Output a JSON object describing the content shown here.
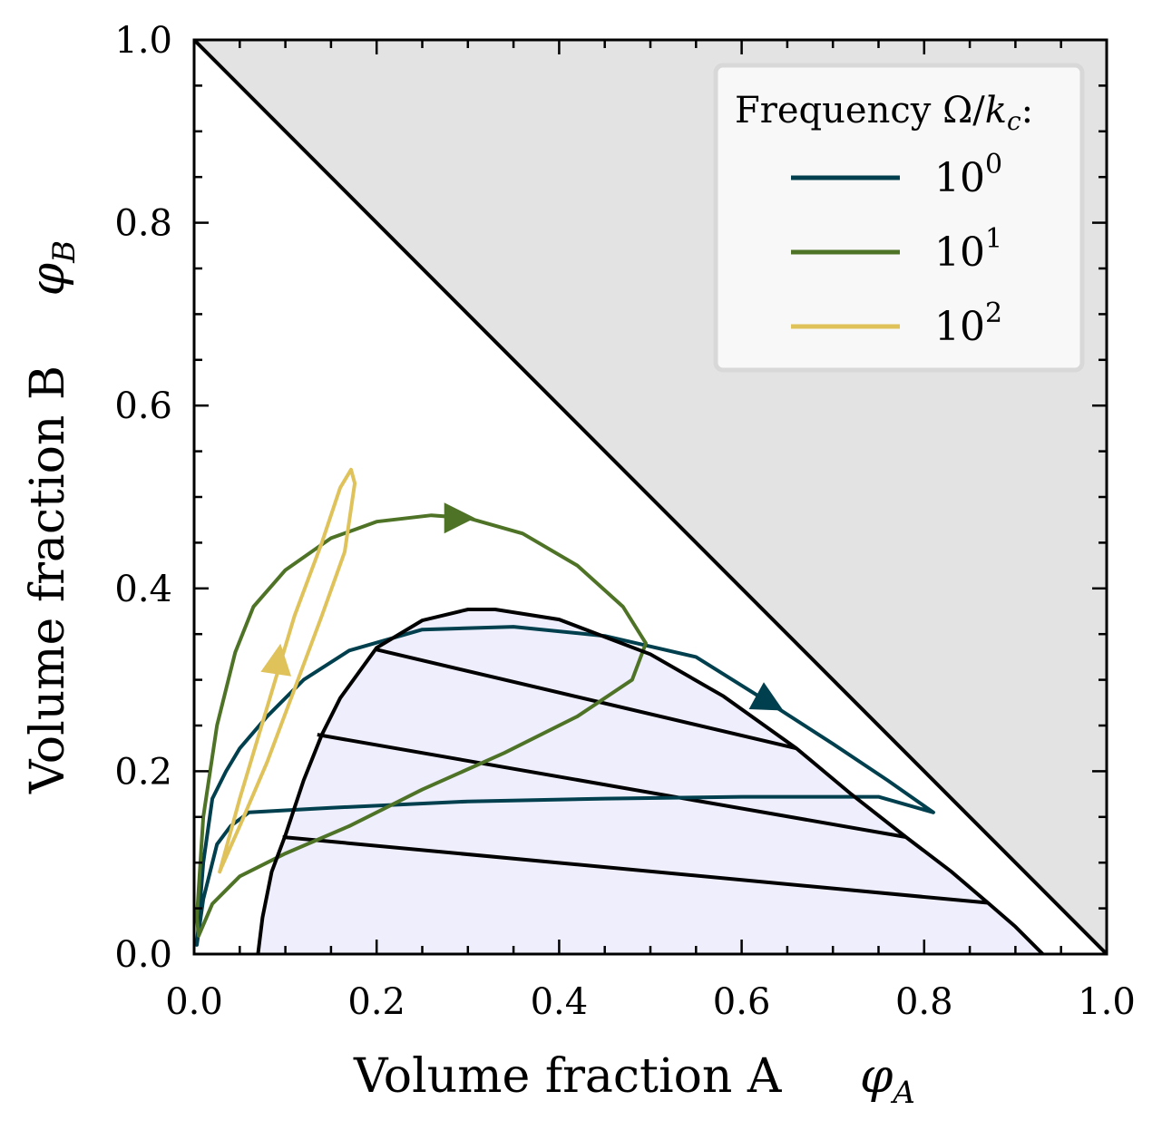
{
  "chart_data": {
    "type": "line",
    "title": "",
    "xlabel": "Volume fraction A",
    "xlabel_symbol": "φ",
    "xlabel_subscript": "A",
    "ylabel": "Volume fraction B",
    "ylabel_symbol": "φ",
    "ylabel_subscript": "B",
    "xlim": [
      0.0,
      1.0
    ],
    "ylim": [
      0.0,
      1.0
    ],
    "x_ticks": [
      "0.0",
      "0.2",
      "0.4",
      "0.6",
      "0.8",
      "1.0"
    ],
    "y_ticks": [
      "0.0",
      "0.2",
      "0.4",
      "0.6",
      "0.8",
      "1.0"
    ],
    "legend": {
      "title_prefix": "Frequency Ω/",
      "title_var": "k",
      "title_sub": "c",
      "title_suffix": ":",
      "placement": "top-right"
    },
    "colors": {
      "forbidden_region": "#e3e3e3",
      "two_phase_region": "#eeeefc",
      "boundary": "#000000"
    },
    "forbidden_region": {
      "description": "phi_A + phi_B > 1",
      "vertices": [
        [
          0,
          1
        ],
        [
          1,
          1
        ],
        [
          1,
          0
        ]
      ]
    },
    "simplex_edge": [
      [
        0,
        1
      ],
      [
        1,
        0
      ]
    ],
    "binodal": [
      [
        0.07,
        0.0
      ],
      [
        0.075,
        0.04
      ],
      [
        0.085,
        0.09
      ],
      [
        0.1,
        0.13
      ],
      [
        0.12,
        0.19
      ],
      [
        0.14,
        0.24
      ],
      [
        0.16,
        0.28
      ],
      [
        0.2,
        0.335
      ],
      [
        0.25,
        0.365
      ],
      [
        0.3,
        0.377
      ],
      [
        0.33,
        0.377
      ],
      [
        0.4,
        0.366
      ],
      [
        0.5,
        0.328
      ],
      [
        0.58,
        0.282
      ],
      [
        0.66,
        0.225
      ],
      [
        0.72,
        0.175
      ],
      [
        0.78,
        0.128
      ],
      [
        0.83,
        0.09
      ],
      [
        0.87,
        0.056
      ],
      [
        0.9,
        0.03
      ],
      [
        0.93,
        0.0
      ]
    ],
    "tie_lines": [
      [
        [
          0.2,
          0.333
        ],
        [
          0.66,
          0.225
        ]
      ],
      [
        [
          0.135,
          0.24
        ],
        [
          0.78,
          0.128
        ]
      ],
      [
        [
          0.097,
          0.128
        ],
        [
          0.87,
          0.056
        ]
      ]
    ],
    "series": [
      {
        "name": "10^0",
        "base": "10",
        "exponent": "0",
        "color": "#003f4d",
        "arrow": {
          "at": [
            0.63,
            0.275
          ],
          "direction": [
            1,
            -0.55
          ]
        },
        "points": [
          [
            0.003,
            0.01
          ],
          [
            0.01,
            0.1
          ],
          [
            0.02,
            0.17
          ],
          [
            0.035,
            0.2
          ],
          [
            0.05,
            0.225
          ],
          [
            0.08,
            0.26
          ],
          [
            0.12,
            0.3
          ],
          [
            0.17,
            0.332
          ],
          [
            0.25,
            0.355
          ],
          [
            0.35,
            0.358
          ],
          [
            0.45,
            0.348
          ],
          [
            0.55,
            0.325
          ],
          [
            0.63,
            0.275
          ],
          [
            0.7,
            0.23
          ],
          [
            0.76,
            0.19
          ],
          [
            0.81,
            0.155
          ],
          [
            0.75,
            0.172
          ],
          [
            0.6,
            0.172
          ],
          [
            0.45,
            0.17
          ],
          [
            0.3,
            0.167
          ],
          [
            0.15,
            0.16
          ],
          [
            0.06,
            0.155
          ],
          [
            0.04,
            0.14
          ],
          [
            0.025,
            0.12
          ],
          [
            0.01,
            0.06
          ],
          [
            0.003,
            0.01
          ]
        ]
      },
      {
        "name": "10^1",
        "base": "10",
        "exponent": "1",
        "color": "#4e7326",
        "arrow": {
          "at": [
            0.29,
            0.477
          ],
          "direction": [
            1,
            0
          ]
        },
        "points": [
          [
            0.003,
            0.04
          ],
          [
            0.01,
            0.15
          ],
          [
            0.025,
            0.25
          ],
          [
            0.045,
            0.33
          ],
          [
            0.065,
            0.38
          ],
          [
            0.1,
            0.42
          ],
          [
            0.15,
            0.455
          ],
          [
            0.2,
            0.473
          ],
          [
            0.26,
            0.48
          ],
          [
            0.3,
            0.477
          ],
          [
            0.36,
            0.46
          ],
          [
            0.42,
            0.425
          ],
          [
            0.47,
            0.38
          ],
          [
            0.495,
            0.34
          ],
          [
            0.48,
            0.3
          ],
          [
            0.42,
            0.26
          ],
          [
            0.34,
            0.22
          ],
          [
            0.25,
            0.18
          ],
          [
            0.17,
            0.14
          ],
          [
            0.1,
            0.11
          ],
          [
            0.05,
            0.085
          ],
          [
            0.02,
            0.055
          ],
          [
            0.005,
            0.02
          ],
          [
            0.003,
            0.04
          ]
        ]
      },
      {
        "name": "10^2",
        "base": "10",
        "exponent": "2",
        "color": "#dfc25a",
        "arrow": {
          "at": [
            0.092,
            0.322
          ],
          "direction": [
            0.15,
            1
          ]
        },
        "points": [
          [
            0.028,
            0.09
          ],
          [
            0.05,
            0.17
          ],
          [
            0.08,
            0.27
          ],
          [
            0.11,
            0.37
          ],
          [
            0.14,
            0.45
          ],
          [
            0.16,
            0.51
          ],
          [
            0.172,
            0.53
          ],
          [
            0.176,
            0.515
          ],
          [
            0.165,
            0.44
          ],
          [
            0.14,
            0.37
          ],
          [
            0.11,
            0.29
          ],
          [
            0.08,
            0.21
          ],
          [
            0.05,
            0.14
          ],
          [
            0.03,
            0.095
          ],
          [
            0.028,
            0.09
          ]
        ]
      }
    ]
  }
}
